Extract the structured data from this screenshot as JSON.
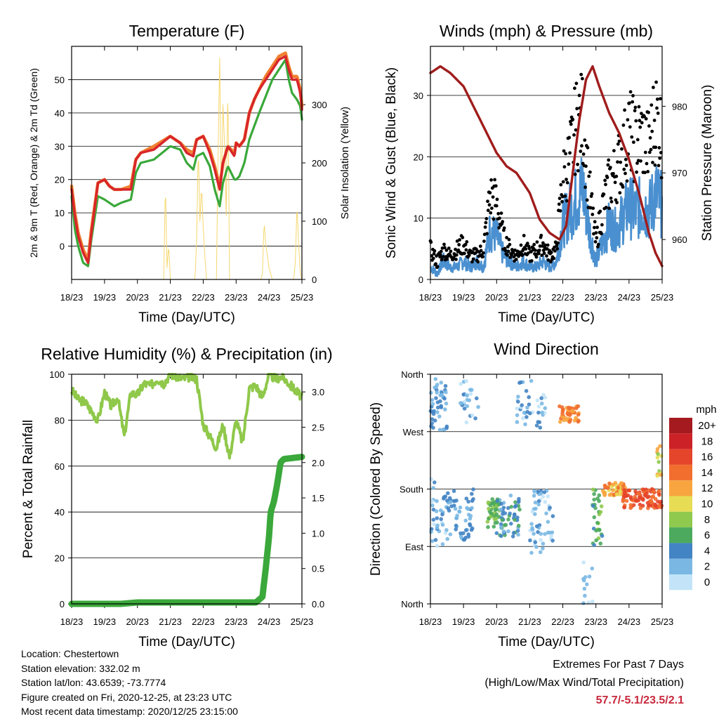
{
  "colors": {
    "temp_red": "#d8262a",
    "temp_orange": "#f08030",
    "dewpoint_green": "#3aa83a",
    "solar_yellow": "#f5d76e",
    "wind_blue": "#4a90d0",
    "gust_black": "#000000",
    "pressure_maroon": "#a01c1c",
    "rh_green": "#8fc84a",
    "precip_green": "#3aa83a",
    "extremes_red": "#c8283c"
  },
  "chart_data": [
    {
      "type": "line",
      "title": "Temperature (F)",
      "xlabel": "Time (Day/UTC)",
      "ylabel_left": "2m & 9m T (Red, Orange) & 2m Td (Green)",
      "ylabel_right": "Solar Insolation (Yellow)",
      "x_ticks": [
        "18/23",
        "19/23",
        "20/23",
        "21/23",
        "22/23",
        "23/23",
        "24/23",
        "25/23"
      ],
      "y_ticks_left": [
        0,
        10,
        20,
        30,
        40,
        50
      ],
      "y_ticks_right": [
        0,
        100,
        200,
        300
      ],
      "ylim_left": [
        -10,
        60
      ],
      "ylim_right": [
        0,
        400
      ],
      "grid": true,
      "series": [
        {
          "name": "2m T",
          "axis": "left",
          "x": [
            0,
            0.1,
            0.2,
            0.35,
            0.5,
            0.6,
            0.8,
            1.0,
            1.15,
            1.3,
            1.5,
            1.8,
            1.95,
            2.1,
            2.5,
            3.0,
            3.3,
            3.5,
            3.7,
            3.8,
            4.0,
            4.2,
            4.35,
            4.5,
            4.6,
            4.75,
            4.95,
            5.0,
            5.1,
            5.25,
            5.4,
            5.55,
            5.7,
            5.9,
            6.1,
            6.3,
            6.5,
            6.6,
            6.7,
            6.85,
            6.95,
            7.0
          ],
          "values": [
            17,
            9,
            3,
            -2,
            -5,
            4,
            19,
            20,
            18,
            17,
            17,
            17,
            26,
            28,
            29,
            33,
            31,
            28,
            27,
            32,
            33,
            28,
            23,
            17,
            25,
            30,
            27,
            31,
            30,
            32,
            40,
            44,
            47,
            50,
            53,
            56,
            57,
            53,
            50,
            50,
            46,
            41
          ]
        },
        {
          "name": "9m T",
          "axis": "left",
          "x": [
            0,
            0.1,
            0.2,
            0.35,
            0.5,
            0.6,
            0.8,
            1.0,
            1.15,
            1.3,
            1.5,
            1.8,
            1.95,
            2.1,
            2.5,
            3.0,
            3.3,
            3.5,
            3.7,
            3.8,
            4.0,
            4.2,
            4.35,
            4.5,
            4.6,
            4.75,
            4.95,
            5.0,
            5.1,
            5.25,
            5.4,
            5.55,
            5.7,
            5.9,
            6.1,
            6.3,
            6.5,
            6.6,
            6.7,
            6.85,
            6.95,
            7.0
          ],
          "values": [
            18,
            10,
            4,
            -1,
            -4,
            5,
            19,
            20,
            18,
            17,
            17,
            18,
            26,
            28,
            30,
            33,
            31,
            29,
            28,
            32,
            33,
            29,
            24,
            18,
            25,
            30,
            28,
            31,
            30,
            32,
            40,
            44,
            47,
            51,
            54,
            57,
            58,
            54,
            51,
            51,
            47,
            42
          ]
        },
        {
          "name": "2m Td",
          "axis": "left",
          "x": [
            0,
            0.1,
            0.2,
            0.35,
            0.5,
            0.6,
            0.8,
            1.0,
            1.15,
            1.3,
            1.5,
            1.8,
            1.95,
            2.1,
            2.5,
            3.0,
            3.3,
            3.5,
            3.7,
            3.8,
            4.0,
            4.2,
            4.35,
            4.5,
            4.6,
            4.75,
            4.95,
            5.0,
            5.1,
            5.25,
            5.4,
            5.55,
            5.7,
            5.9,
            6.1,
            6.3,
            6.5,
            6.6,
            6.7,
            6.85,
            6.95,
            7.0
          ],
          "values": [
            15,
            5,
            0,
            -5,
            -6,
            2,
            15,
            14,
            13,
            12,
            13,
            14,
            22,
            25,
            26,
            30,
            29,
            25,
            23,
            27,
            28,
            24,
            17,
            12,
            19,
            24,
            20,
            20,
            21,
            25,
            32,
            36,
            40,
            45,
            50,
            53,
            56,
            50,
            46,
            44,
            42,
            38
          ]
        },
        {
          "name": "Solar Insolation",
          "axis": "right",
          "x": [
            0,
            2.8,
            2.85,
            2.9,
            2.95,
            3.0,
            3.75,
            3.8,
            3.85,
            3.9,
            3.95,
            4.0,
            4.05,
            4.1,
            4.4,
            4.45,
            4.5,
            4.55,
            4.6,
            4.65,
            4.7,
            4.75,
            4.8,
            5.75,
            5.8,
            5.85,
            5.9,
            5.95,
            6.0,
            6.05,
            6.1,
            6.75,
            6.8,
            6.85,
            6.9,
            6.95,
            7.0
          ],
          "values": [
            0,
            0,
            170,
            20,
            60,
            0,
            0,
            70,
            230,
            100,
            160,
            90,
            40,
            0,
            0,
            210,
            380,
            130,
            300,
            230,
            110,
            350,
            0,
            0,
            10,
            100,
            60,
            40,
            20,
            10,
            0,
            0,
            30,
            130,
            60,
            10,
            0
          ]
        }
      ]
    },
    {
      "type": "line",
      "title": "Winds (mph) & Pressure (mb)",
      "xlabel": "Time (Day/UTC)",
      "ylabel_left": "Sonic Wind & Gust (Blue, Black)",
      "ylabel_right": "Station Pressure (Maroon)",
      "x_ticks": [
        "18/23",
        "19/23",
        "20/23",
        "21/23",
        "22/23",
        "23/23",
        "24/23",
        "25/23"
      ],
      "y_ticks_left": [
        0,
        10,
        20,
        30
      ],
      "y_ticks_right": [
        960,
        970,
        980
      ],
      "ylim_left": [
        0,
        38
      ],
      "ylim_right": [
        954,
        989
      ],
      "grid": true,
      "series": [
        {
          "name": "Sonic Wind",
          "axis": "left",
          "x": [
            0,
            0.2,
            0.4,
            0.6,
            0.8,
            1.0,
            1.2,
            1.4,
            1.6,
            1.8,
            2.0,
            2.2,
            2.4,
            2.6,
            2.8,
            3.0,
            3.2,
            3.4,
            3.6,
            3.8,
            4.0,
            4.2,
            4.4,
            4.6,
            4.8,
            5.0,
            5.2,
            5.4,
            5.6,
            5.8,
            6.0,
            6.2,
            6.4,
            6.6,
            6.8,
            7.0
          ],
          "values": [
            2,
            1,
            3,
            2,
            2,
            3,
            2,
            3,
            2,
            8,
            7,
            4,
            3,
            2,
            3,
            2,
            2,
            3,
            2,
            3,
            9,
            11,
            13,
            15,
            8,
            3,
            6,
            9,
            8,
            10,
            12,
            11,
            12,
            11,
            14,
            12
          ]
        },
        {
          "name": "Gust",
          "axis": "left",
          "x": [
            0,
            0.2,
            0.4,
            0.6,
            0.8,
            1.0,
            1.2,
            1.4,
            1.6,
            1.8,
            2.0,
            2.2,
            2.4,
            2.6,
            2.8,
            3.0,
            3.2,
            3.4,
            3.6,
            3.8,
            4.0,
            4.2,
            4.4,
            4.6,
            4.8,
            5.0,
            5.2,
            5.4,
            5.6,
            5.8,
            6.0,
            6.2,
            6.4,
            6.6,
            6.8,
            7.0
          ],
          "values": [
            5,
            3,
            5,
            4,
            5,
            6,
            4,
            4,
            5,
            14,
            13,
            7,
            5,
            4,
            6,
            4,
            5,
            6,
            4,
            5,
            17,
            20,
            26,
            27,
            15,
            6,
            12,
            16,
            18,
            21,
            25,
            23,
            24,
            22,
            28,
            24
          ]
        },
        {
          "name": "Station Pressure",
          "axis": "right",
          "x": [
            0,
            0.3,
            0.6,
            1.0,
            1.5,
            2.0,
            2.3,
            2.6,
            3.0,
            3.3,
            3.6,
            3.9,
            4.1,
            4.3,
            4.5,
            4.7,
            4.9,
            5.1,
            5.4,
            5.7,
            6.0,
            6.3,
            6.6,
            6.8,
            7.0
          ],
          "values": [
            985,
            986,
            985,
            983,
            978,
            973,
            971,
            970,
            967,
            963,
            961,
            960,
            962,
            970,
            978,
            984,
            986,
            983,
            979,
            976,
            972,
            967,
            961,
            958,
            956
          ]
        }
      ]
    },
    {
      "type": "line",
      "title": "Relative Humidity (%) & Precipitation (in)",
      "xlabel": "Time (Day/UTC)",
      "ylabel": "Percent & Total Rainfall",
      "x_ticks": [
        "18/23",
        "19/23",
        "20/23",
        "21/23",
        "22/23",
        "23/23",
        "24/23",
        "25/23"
      ],
      "y_ticks_left": [
        0,
        20,
        40,
        60,
        80,
        100
      ],
      "y_ticks_right": [
        "0.0",
        "0.5",
        "1.0",
        "1.5",
        "2.0",
        "2.5",
        "3.0"
      ],
      "ylim_left": [
        0,
        100
      ],
      "ylim_right": [
        0,
        3.25
      ],
      "grid": true,
      "series": [
        {
          "name": "Relative Humidity",
          "axis": "left",
          "x": [
            0,
            0.2,
            0.4,
            0.6,
            0.8,
            1.0,
            1.2,
            1.4,
            1.6,
            1.8,
            2.0,
            2.2,
            2.4,
            2.6,
            2.8,
            3.0,
            3.2,
            3.4,
            3.6,
            3.8,
            4.0,
            4.2,
            4.4,
            4.6,
            4.8,
            5.0,
            5.2,
            5.4,
            5.6,
            5.8,
            6.0,
            6.2,
            6.4,
            6.6,
            6.8,
            7.0
          ],
          "values": [
            93,
            89,
            88,
            84,
            80,
            92,
            86,
            90,
            73,
            92,
            91,
            96,
            95,
            98,
            96,
            100,
            99,
            98,
            99,
            98,
            78,
            73,
            68,
            78,
            64,
            80,
            70,
            94,
            95,
            90,
            100,
            98,
            99,
            96,
            93,
            90
          ]
        },
        {
          "name": "Total Precipitation",
          "axis": "right",
          "x": [
            0,
            1.5,
            2.0,
            3.0,
            4.0,
            5.0,
            5.6,
            5.8,
            5.9,
            6.0,
            6.05,
            6.15,
            6.25,
            6.35,
            6.45,
            7.0
          ],
          "values": [
            0,
            0,
            0.02,
            0.02,
            0.02,
            0.02,
            0.02,
            0.1,
            0.5,
            0.95,
            1.3,
            1.45,
            1.7,
            2.0,
            2.05,
            2.08
          ]
        }
      ]
    },
    {
      "type": "scatter",
      "title": "Wind Direction",
      "xlabel": "Time (Day/UTC)",
      "ylabel": "Direction (Colored By Speed)",
      "x_ticks": [
        "18/23",
        "19/23",
        "20/23",
        "21/23",
        "22/23",
        "23/23",
        "24/23",
        "25/23"
      ],
      "y_ticks": [
        "North",
        "East",
        "South",
        "West",
        "North"
      ],
      "ylim": [
        0,
        360
      ],
      "grid": true,
      "legend": {
        "title": "mph",
        "labels": [
          "20+",
          "18",
          "16",
          "14",
          "12",
          "10",
          "8",
          "6",
          "4",
          "2",
          "0"
        ],
        "colors": [
          "#a51a1f",
          "#cc2127",
          "#e5452a",
          "#f26e2f",
          "#f8a540",
          "#e6dd55",
          "#8fc94e",
          "#4caa5e",
          "#4284c4",
          "#7ab8e3",
          "#c3e4f8"
        ],
        "placement": "right"
      },
      "clusters": [
        {
          "x_start": 0.0,
          "x_end": 0.5,
          "dir_min": 270,
          "dir_max": 355,
          "speed": 3,
          "count": 45
        },
        {
          "x_start": 0.0,
          "x_end": 0.5,
          "dir_min": 90,
          "dir_max": 200,
          "speed": 2,
          "count": 35
        },
        {
          "x_start": 0.5,
          "x_end": 1.3,
          "dir_min": 100,
          "dir_max": 180,
          "speed": 3,
          "count": 55
        },
        {
          "x_start": 0.9,
          "x_end": 1.5,
          "dir_min": 280,
          "dir_max": 350,
          "speed": 2,
          "count": 25
        },
        {
          "x_start": 1.7,
          "x_end": 2.1,
          "dir_min": 120,
          "dir_max": 165,
          "speed": 7,
          "count": 45
        },
        {
          "x_start": 2.0,
          "x_end": 2.7,
          "dir_min": 105,
          "dir_max": 170,
          "speed": 4,
          "count": 55
        },
        {
          "x_start": 2.6,
          "x_end": 3.1,
          "dir_min": 280,
          "dir_max": 355,
          "speed": 2,
          "count": 25
        },
        {
          "x_start": 3.0,
          "x_end": 3.7,
          "dir_min": 80,
          "dir_max": 180,
          "speed": 2,
          "count": 55
        },
        {
          "x_start": 3.2,
          "x_end": 3.5,
          "dir_min": 270,
          "dir_max": 330,
          "speed": 2,
          "count": 15
        },
        {
          "x_start": 3.9,
          "x_end": 4.5,
          "dir_min": 285,
          "dir_max": 310,
          "speed": 13,
          "count": 45
        },
        {
          "x_start": 4.6,
          "x_end": 4.9,
          "dir_min": 0,
          "dir_max": 80,
          "speed": 1,
          "count": 12
        },
        {
          "x_start": 4.9,
          "x_end": 5.2,
          "dir_min": 90,
          "dir_max": 180,
          "speed": 6,
          "count": 30
        },
        {
          "x_start": 5.2,
          "x_end": 5.9,
          "dir_min": 170,
          "dir_max": 190,
          "speed": 12,
          "count": 55
        },
        {
          "x_start": 5.8,
          "x_end": 7.0,
          "dir_min": 150,
          "dir_max": 180,
          "speed": 15,
          "count": 95
        },
        {
          "x_start": 6.8,
          "x_end": 7.0,
          "dir_min": 190,
          "dir_max": 250,
          "speed": 10,
          "count": 12
        }
      ]
    }
  ],
  "info": {
    "location": "Location: Chestertown",
    "elevation": "Station elevation: 332.02 m",
    "latlon": "Station lat/lon: 43.6539; -73.7774",
    "created": "Figure created on Fri, 2020-12-25, at 23:23 UTC",
    "recent": "Most recent data timestamp: 2020/12/25 23:15:00"
  },
  "extremes": {
    "title": "Extremes For Past 7 Days",
    "subtitle": "(High/Low/Max Wind/Total Precipitation)",
    "values": "57.7/-5.1/23.5/2.1"
  }
}
